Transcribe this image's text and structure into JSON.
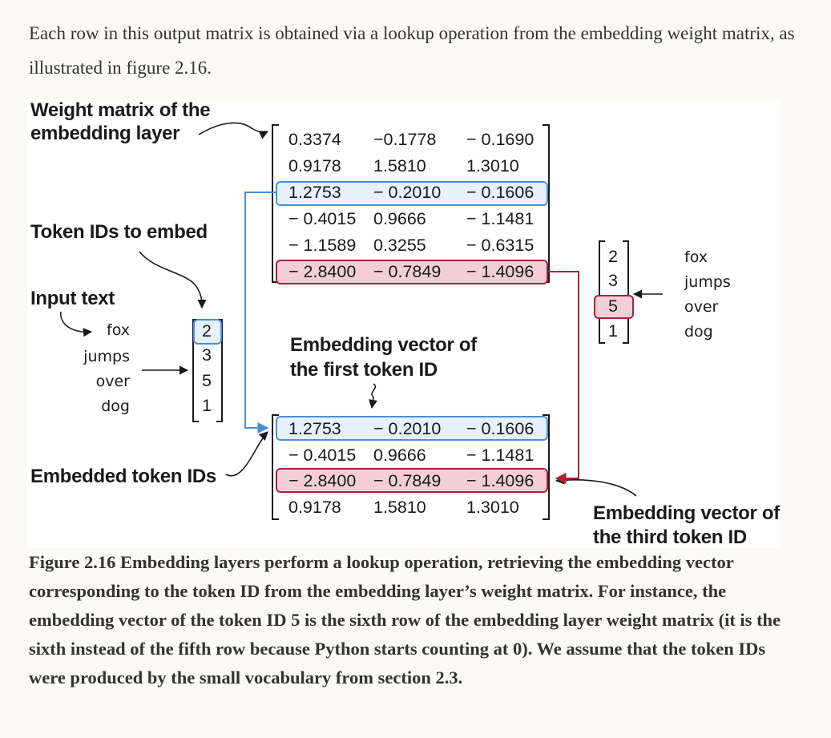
{
  "intro_text": "Each row in this output matrix is obtained via a lookup operation from the embedding weight matrix, as illustrated in figure 2.16.",
  "figure": {
    "label_weight_matrix": [
      "Weight matrix of the",
      "embedding layer"
    ],
    "label_token_ids": "Token IDs to embed",
    "label_input_text": "Input text",
    "label_embedding_first": [
      "Embedding vector of",
      "the first token ID"
    ],
    "label_embedded_ids": "Embedded token IDs",
    "label_embedding_third": [
      "Embedding vector of",
      "the third token ID"
    ],
    "input_words": [
      "fox",
      "jumps",
      "over",
      "dog"
    ],
    "token_ids": [
      "2",
      "3",
      "5",
      "1"
    ],
    "weight_matrix": [
      [
        "0.3374",
        "−0.1778",
        "− 0.1690"
      ],
      [
        "0.9178",
        "1.5810",
        "1.3010"
      ],
      [
        "1.2753",
        "− 0.2010",
        "− 0.1606"
      ],
      [
        "− 0.4015",
        "0.9666",
        "− 1.1481"
      ],
      [
        "− 1.1589",
        "0.3255",
        "− 0.6315"
      ],
      [
        "− 2.8400",
        "− 0.7849",
        "− 1.4096"
      ]
    ],
    "embedded_matrix": [
      [
        "1.2753",
        "− 0.2010",
        "− 0.1606"
      ],
      [
        "− 0.4015",
        "0.9666",
        "− 1.1481"
      ],
      [
        "− 2.8400",
        "− 0.7849",
        "− 1.4096"
      ],
      [
        "0.9178",
        "1.5810",
        "1.3010"
      ]
    ],
    "highlight_colors": {
      "blue": "#4a8fd8",
      "red": "#a8223a"
    }
  },
  "caption": "Figure 2.16 Embedding layers perform a lookup operation, retrieving the embedding vector corresponding to the token ID from the embedding layer’s weight matrix. For instance, the embedding vector of the token ID 5 is the sixth row of the embedding layer weight matrix (it is the sixth instead of the fifth row because Python starts counting at 0). We assume that the token IDs were produced by the small vocabulary from section 2.3."
}
